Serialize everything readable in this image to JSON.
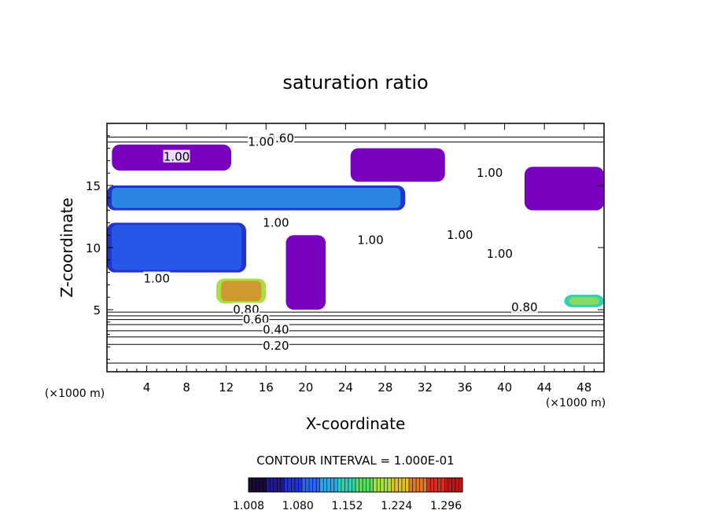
{
  "chart_data": {
    "type": "heatmap",
    "title": "saturation ratio",
    "xlabel": "X-coordinate",
    "ylabel": "Z-coordinate",
    "x_unit": "(×1000 m)",
    "z_unit": "(×1000 m)",
    "xlim": [
      0,
      50
    ],
    "ylim": [
      0,
      20
    ],
    "x_ticks": [
      4,
      8,
      12,
      16,
      20,
      24,
      28,
      32,
      36,
      40,
      44,
      48
    ],
    "y_ticks": [
      5,
      10,
      15
    ],
    "contour_interval_text": "CONTOUR INTERVAL = 1.000E-01",
    "contour_interval": 0.1,
    "contour_levels": [
      0.1,
      0.2,
      0.3,
      0.4,
      0.5,
      0.6,
      0.7,
      0.8,
      0.9,
      1.0
    ],
    "contour_labels": [
      {
        "text": "0.60",
        "x": 17.5,
        "z": 18.8
      },
      {
        "text": "1.00",
        "x": 15.5,
        "z": 18.5
      },
      {
        "text": "1.00",
        "x": 7.0,
        "z": 17.3
      },
      {
        "text": "1.00",
        "x": 38.5,
        "z": 16.0
      },
      {
        "text": "1.00",
        "x": 17.0,
        "z": 12.0
      },
      {
        "text": "1.00",
        "x": 35.5,
        "z": 11.0
      },
      {
        "text": "1.00",
        "x": 26.5,
        "z": 10.6
      },
      {
        "text": "1.00",
        "x": 39.5,
        "z": 9.5
      },
      {
        "text": "1.00",
        "x": 5.0,
        "z": 7.5
      },
      {
        "text": "0.80",
        "x": 14.0,
        "z": 5.0
      },
      {
        "text": "0.80",
        "x": 42.0,
        "z": 5.2
      },
      {
        "text": "0.60",
        "x": 15.0,
        "z": 4.2
      },
      {
        "text": "0.40",
        "x": 17.0,
        "z": 3.4
      },
      {
        "text": "0.20",
        "x": 17.0,
        "z": 2.1
      }
    ],
    "horizontal_contours_z": [
      0.7,
      2.2,
      2.8,
      3.3,
      3.8,
      4.2,
      4.5,
      4.8,
      18.5,
      18.9
    ],
    "colorbar": {
      "ticks": [
        "1.008",
        "1.080",
        "1.152",
        "1.224",
        "1.296"
      ],
      "range": [
        1.008,
        1.32
      ],
      "colors": [
        "#1a0a3a",
        "#201a8c",
        "#2233d0",
        "#2a66f0",
        "#2ca8e8",
        "#33d0b0",
        "#55e060",
        "#a8e040",
        "#e0c030",
        "#e07a2a",
        "#d83020",
        "#c01818"
      ]
    },
    "supersaturated_regions": [
      {
        "z": [
          16.2,
          18.3
        ],
        "x": [
          0.5,
          12.5
        ],
        "value": 1.008
      },
      {
        "z": [
          15.3,
          18.0
        ],
        "x": [
          24.5,
          34.0
        ],
        "value": 1.008
      },
      {
        "z": [
          13.0,
          16.5
        ],
        "x": [
          42.0,
          50.0
        ],
        "value": 1.02
      },
      {
        "z": [
          5.0,
          11.0
        ],
        "x": [
          18.0,
          22.0
        ],
        "value": 1.008
      },
      {
        "z": [
          8.0,
          12.0
        ],
        "x": [
          0.0,
          14.0
        ],
        "value": 1.06
      },
      {
        "z": [
          13.0,
          15.0
        ],
        "x": [
          0.0,
          30.0
        ],
        "value": 1.08
      },
      {
        "z": [
          5.5,
          7.5
        ],
        "x": [
          11.0,
          16.0
        ],
        "value": 1.2
      },
      {
        "z": [
          5.2,
          6.2
        ],
        "x": [
          46.0,
          50.0
        ],
        "value": 1.16
      }
    ]
  }
}
